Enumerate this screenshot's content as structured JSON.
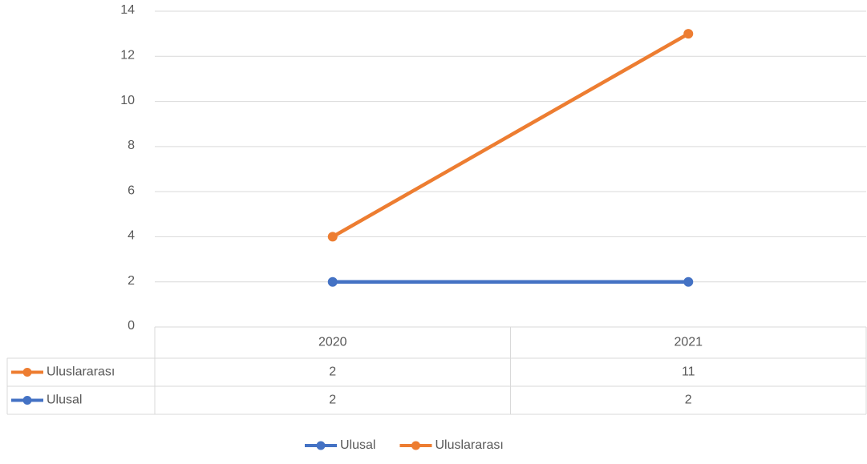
{
  "chart_data": {
    "type": "line",
    "stacked": true,
    "categories": [
      "2020",
      "2021"
    ],
    "series": [
      {
        "name": "Ulusal",
        "color": "#4472c4",
        "values": [
          2,
          2
        ]
      },
      {
        "name": "Uluslararası",
        "color": "#ed7d31",
        "values": [
          2,
          11
        ]
      }
    ],
    "ylim": [
      0,
      14
    ],
    "yticks": [
      0,
      2,
      4,
      6,
      8,
      10,
      12,
      14
    ],
    "grid": true,
    "data_table": true,
    "legend": "bottom"
  }
}
